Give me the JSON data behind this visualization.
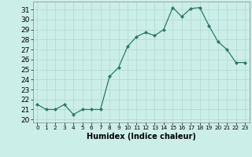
{
  "x": [
    0,
    1,
    2,
    3,
    4,
    5,
    6,
    7,
    8,
    9,
    10,
    11,
    12,
    13,
    14,
    15,
    16,
    17,
    18,
    19,
    20,
    21,
    22,
    23
  ],
  "y": [
    21.5,
    21.0,
    21.0,
    21.5,
    20.5,
    21.0,
    21.0,
    21.0,
    24.3,
    25.2,
    27.3,
    28.3,
    28.7,
    28.4,
    29.0,
    31.2,
    30.3,
    31.1,
    31.2,
    29.4,
    27.8,
    27.0,
    25.7,
    25.7
  ],
  "line_color": "#2a7a6a",
  "marker": "D",
  "marker_size": 2.0,
  "bg_color": "#cceee8",
  "grid_color": "#b0d8d4",
  "xlabel": "Humidex (Indice chaleur)",
  "ylabel_ticks": [
    20,
    21,
    22,
    23,
    24,
    25,
    26,
    27,
    28,
    29,
    30,
    31
  ],
  "xlim": [
    -0.5,
    23.5
  ],
  "ylim": [
    19.7,
    31.8
  ],
  "xlabel_fontsize": 7,
  "ylabel_fontsize": 6.5,
  "xtick_fontsize": 5.2,
  "linewidth": 0.9
}
